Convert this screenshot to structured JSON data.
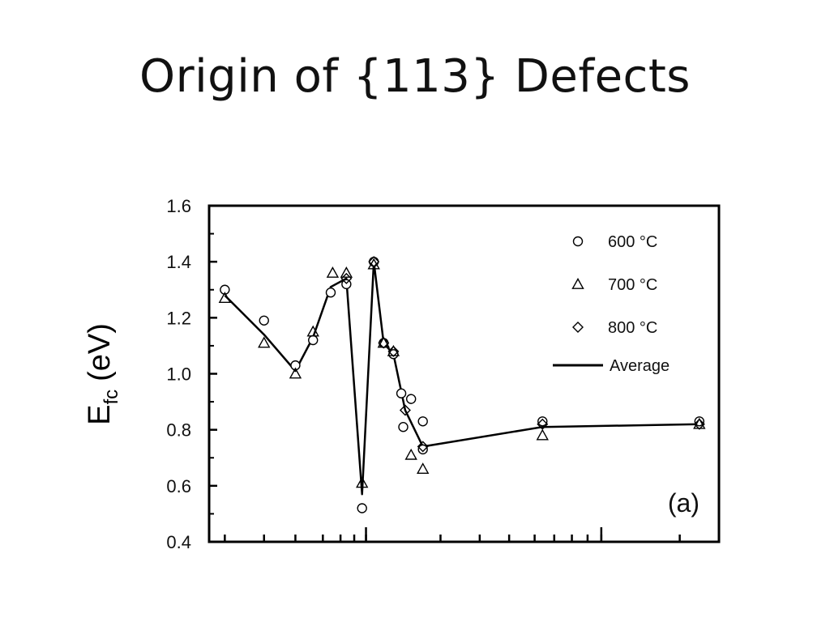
{
  "slide": {
    "title": "Origin of {113} Defects"
  },
  "chart_data": {
    "type": "scatter",
    "ylabel_main": "E",
    "ylabel_sub": "fc",
    "ylabel_unit": "(eV)",
    "ylim": [
      0.4,
      1.6
    ],
    "yticks": [
      0.4,
      0.6,
      0.8,
      1.0,
      1.2,
      1.4,
      1.6
    ],
    "ytick_labels": [
      "0.4",
      "0.6",
      "0.8",
      "1.0",
      "1.2",
      "1.4",
      "1.6"
    ],
    "xlim": [
      0,
      26
    ],
    "x_major_ticks": [
      8.0,
      20.0
    ],
    "x_minor_ticks": [
      0.8,
      2.8,
      4.4,
      5.8,
      6.7,
      7.4,
      8.0,
      11.8,
      13.8,
      15.3,
      16.6,
      17.6,
      18.5,
      19.3,
      20.0,
      24.0
    ],
    "xtick_labels_shown": false,
    "panel_label": "(a)",
    "legend_position": "top-right",
    "series": [
      {
        "name": "600 °C",
        "marker": "circle",
        "points": [
          [
            0.8,
            1.3
          ],
          [
            2.8,
            1.19
          ],
          [
            4.4,
            1.03
          ],
          [
            5.3,
            1.12
          ],
          [
            6.2,
            1.29
          ],
          [
            7.0,
            1.32
          ],
          [
            7.8,
            0.52
          ],
          [
            8.4,
            1.4
          ],
          [
            8.9,
            1.11
          ],
          [
            9.4,
            1.07
          ],
          [
            9.8,
            0.93
          ],
          [
            10.3,
            0.91
          ],
          [
            9.9,
            0.81
          ],
          [
            10.9,
            0.83
          ],
          [
            10.9,
            0.73
          ],
          [
            17.0,
            0.83
          ],
          [
            25.0,
            0.83
          ]
        ]
      },
      {
        "name": "700 °C",
        "marker": "triangle",
        "points": [
          [
            0.8,
            1.27
          ],
          [
            2.8,
            1.11
          ],
          [
            4.4,
            1.0
          ],
          [
            5.3,
            1.15
          ],
          [
            6.3,
            1.36
          ],
          [
            7.0,
            1.36
          ],
          [
            7.8,
            0.61
          ],
          [
            8.4,
            1.39
          ],
          [
            8.9,
            1.11
          ],
          [
            9.4,
            1.08
          ],
          [
            10.3,
            0.71
          ],
          [
            10.9,
            0.66
          ],
          [
            17.0,
            0.78
          ],
          [
            25.0,
            0.82
          ]
        ]
      },
      {
        "name": "800 °C",
        "marker": "diamond",
        "points": [
          [
            7.0,
            1.34
          ],
          [
            8.4,
            1.4
          ],
          [
            8.9,
            1.11
          ],
          [
            9.4,
            1.08
          ],
          [
            10.0,
            0.87
          ],
          [
            10.9,
            0.74
          ],
          [
            17.0,
            0.82
          ],
          [
            25.0,
            0.82
          ]
        ]
      },
      {
        "name": "Average",
        "marker": "line",
        "points": [
          [
            0.8,
            1.28
          ],
          [
            2.8,
            1.14
          ],
          [
            4.4,
            1.01
          ],
          [
            5.3,
            1.13
          ],
          [
            6.2,
            1.31
          ],
          [
            7.0,
            1.34
          ],
          [
            7.8,
            0.57
          ],
          [
            8.4,
            1.4
          ],
          [
            8.9,
            1.11
          ],
          [
            9.4,
            1.07
          ],
          [
            10.0,
            0.87
          ],
          [
            10.9,
            0.74
          ],
          [
            17.0,
            0.81
          ],
          [
            25.0,
            0.82
          ]
        ]
      }
    ]
  }
}
